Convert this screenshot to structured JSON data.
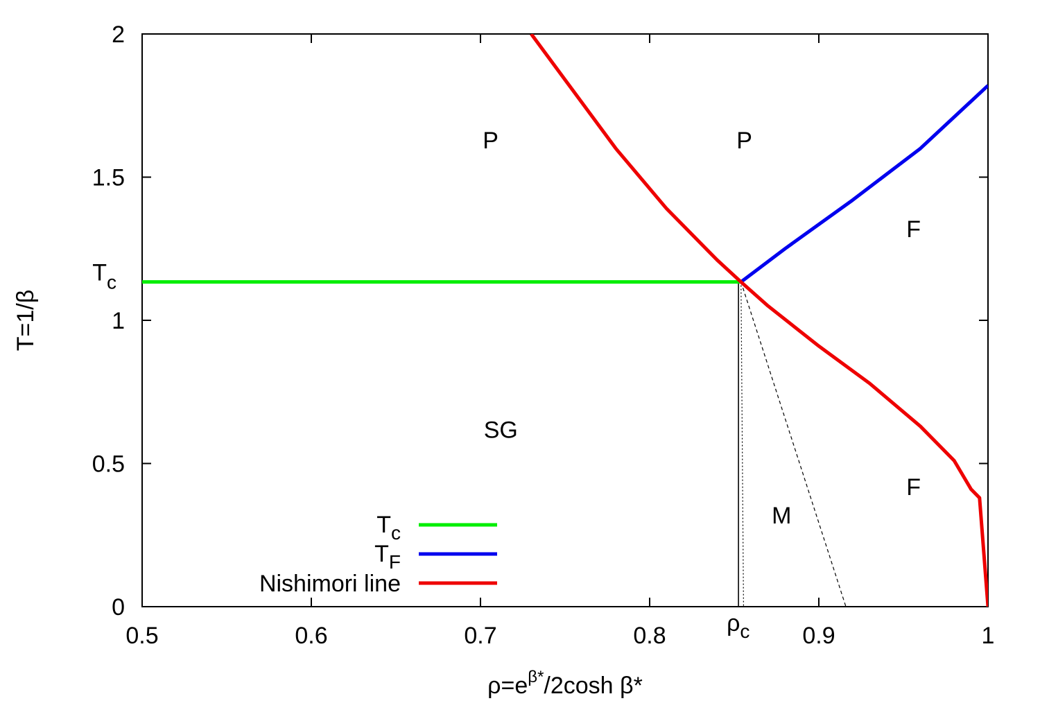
{
  "chart_data": {
    "type": "line",
    "xlabel": {
      "base": "ρ=e",
      "sup": "β*",
      "rest": "/2cosh β*"
    },
    "ylabel": "T=1/β",
    "xlim": [
      0.5,
      1.0
    ],
    "ylim": [
      0,
      2
    ],
    "x_ticks": [
      "0.5",
      "0.6",
      "0.7",
      "0.8",
      "0.9",
      "1"
    ],
    "x_tick_values": [
      0.5,
      0.6,
      0.7,
      0.8,
      0.9,
      1.0
    ],
    "y_ticks": [
      "0",
      "0.5",
      "1",
      "1.5",
      "2"
    ],
    "y_tick_values": [
      0,
      0.5,
      1,
      1.5,
      2
    ],
    "special_ticks": {
      "tc": {
        "base": "T",
        "sub": "c",
        "value": 1.134
      },
      "rhoc": {
        "base": "ρ",
        "sub": "c",
        "value": 0.854
      }
    },
    "legend_position": "bottom-left",
    "series": [
      {
        "name": {
          "base": "T",
          "sub": "c"
        },
        "color": "#00ee00",
        "points": [
          [
            0.5,
            1.134
          ],
          [
            0.854,
            1.134
          ]
        ]
      },
      {
        "name": {
          "base": "T",
          "sub": "F"
        },
        "color": "#0000ee",
        "points": [
          [
            0.854,
            1.134
          ],
          [
            0.88,
            1.25
          ],
          [
            0.92,
            1.42
          ],
          [
            0.96,
            1.6
          ],
          [
            1.0,
            1.82
          ]
        ]
      },
      {
        "name": {
          "base": "Nishimori line",
          "sub": ""
        },
        "color": "#ee0000",
        "points": [
          [
            0.73,
            2.0
          ],
          [
            0.75,
            1.84
          ],
          [
            0.78,
            1.6
          ],
          [
            0.81,
            1.39
          ],
          [
            0.84,
            1.21
          ],
          [
            0.854,
            1.134
          ],
          [
            0.87,
            1.05
          ],
          [
            0.9,
            0.91
          ],
          [
            0.93,
            0.78
          ],
          [
            0.96,
            0.63
          ],
          [
            0.98,
            0.51
          ],
          [
            0.99,
            0.41
          ],
          [
            0.995,
            0.38
          ],
          [
            1.0,
            0.0
          ]
        ]
      }
    ],
    "boundaries": [
      {
        "style": "solid",
        "points": [
          [
            0.8525,
            1.134
          ],
          [
            0.8525,
            0.0
          ]
        ]
      },
      {
        "style": "dotted",
        "points": [
          [
            0.854,
            1.134
          ],
          [
            0.8555,
            0.0
          ]
        ]
      },
      {
        "style": "dashed",
        "points": [
          [
            0.854,
            1.134
          ],
          [
            0.916,
            0.0
          ]
        ]
      }
    ],
    "regions": [
      {
        "label": "P",
        "x": 0.706,
        "y": 1.6
      },
      {
        "label": "P",
        "x": 0.856,
        "y": 1.6
      },
      {
        "label": "F",
        "x": 0.956,
        "y": 1.29
      },
      {
        "label": "SG",
        "x": 0.712,
        "y": 0.59
      },
      {
        "label": "M",
        "x": 0.878,
        "y": 0.29
      },
      {
        "label": "F",
        "x": 0.956,
        "y": 0.39
      }
    ]
  }
}
